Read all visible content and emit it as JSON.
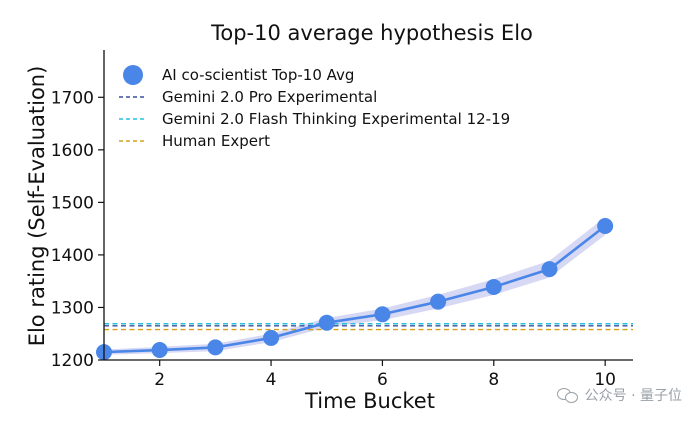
{
  "chart_data": {
    "type": "line",
    "title": "Top-10 average hypothesis Elo",
    "xlabel": "Time Bucket",
    "ylabel": "Elo rating (Self-Evaluation)",
    "xlim": [
      1,
      10.5
    ],
    "ylim": [
      1200,
      1790
    ],
    "xticks": [
      2,
      4,
      6,
      8,
      10
    ],
    "yticks": [
      1200,
      1300,
      1400,
      1500,
      1600,
      1700
    ],
    "x": [
      1,
      2,
      3,
      4,
      5,
      6,
      7,
      8,
      9,
      10
    ],
    "series": [
      {
        "name": "AI co-scientist Top-10 Avg",
        "values": [
          1215,
          1219,
          1224,
          1242,
          1271,
          1287,
          1311,
          1339,
          1373,
          1455
        ],
        "band_lower": [
          1210,
          1213,
          1217,
          1234,
          1262,
          1276,
          1298,
          1324,
          1357,
          1438
        ],
        "band_upper": [
          1220,
          1225,
          1231,
          1250,
          1280,
          1298,
          1324,
          1354,
          1389,
          1472
        ],
        "style": "line-marker",
        "color": "#4a86e8",
        "band_color": "#c8cbf0"
      },
      {
        "name": "Gemini 2.0 Pro Experimental",
        "value": 1265,
        "style": "dashed",
        "color": "#3a4fa0"
      },
      {
        "name": "Gemini 2.0 Flash Thinking Experimental 12-19",
        "value": 1269,
        "style": "dashed",
        "color": "#29c0dd"
      },
      {
        "name": "Human Expert",
        "value": 1258,
        "style": "dashed",
        "color": "#d4a017"
      }
    ],
    "legend_position": "top-left",
    "grid": false
  },
  "watermark": {
    "text": "公众号 · 量子位"
  }
}
